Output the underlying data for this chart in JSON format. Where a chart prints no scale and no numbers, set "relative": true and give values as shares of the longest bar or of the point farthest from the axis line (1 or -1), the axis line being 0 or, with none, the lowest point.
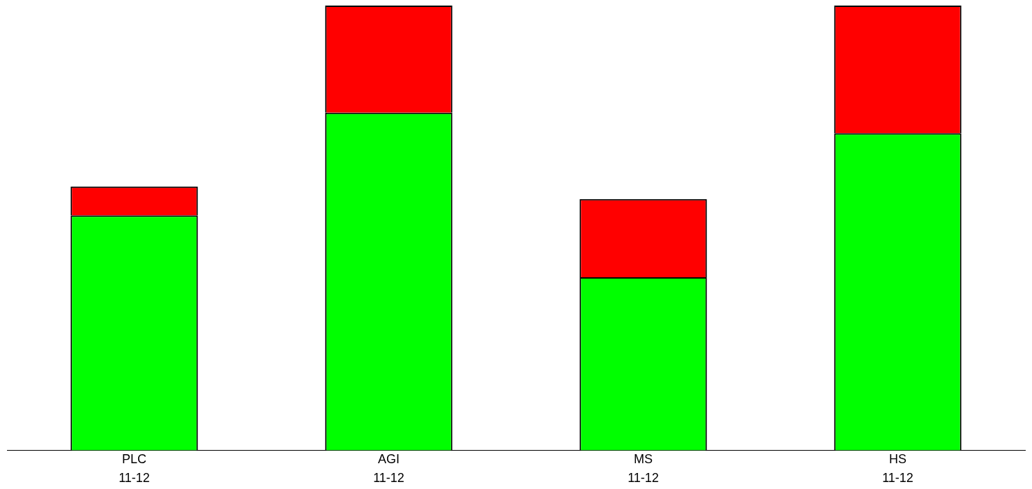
{
  "chart_data": {
    "type": "bar",
    "stacked": true,
    "relative": true,
    "categories": [
      "PLC",
      "AGI",
      "MS",
      "HS"
    ],
    "series": [
      {
        "color": "#00ff00",
        "values": [
          0.528,
          0.759,
          0.389,
          0.713
        ]
      },
      {
        "color": "#ff0000",
        "values": [
          0.065,
          0.241,
          0.176,
          0.287
        ]
      }
    ],
    "annotations": [
      "11-12",
      "11-12",
      "11-12",
      "11-12"
    ],
    "grid": false,
    "legend": false
  }
}
